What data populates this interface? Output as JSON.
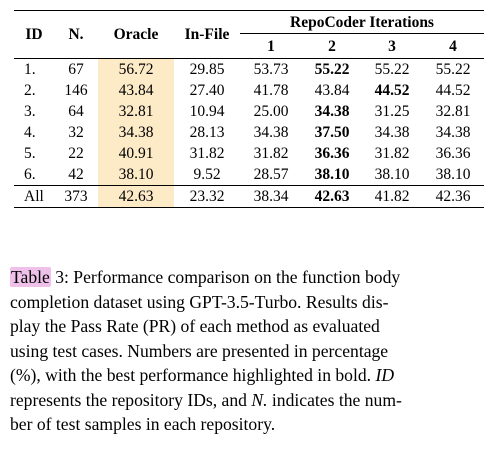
{
  "table": {
    "headers": {
      "id": "ID",
      "n": "N.",
      "oracle": "Oracle",
      "infile": "In-File",
      "group": "RepoCoder Iterations",
      "iterations": [
        "1",
        "2",
        "3",
        "4"
      ]
    },
    "rows": [
      {
        "id": "1.",
        "n": "67",
        "oracle": "56.72",
        "infile": "29.85",
        "it": [
          "53.73",
          "55.22",
          "55.22",
          "55.22"
        ],
        "bold": [
          false,
          true,
          false,
          false
        ]
      },
      {
        "id": "2.",
        "n": "146",
        "oracle": "43.84",
        "infile": "27.40",
        "it": [
          "41.78",
          "43.84",
          "44.52",
          "44.52"
        ],
        "bold": [
          false,
          false,
          true,
          false
        ]
      },
      {
        "id": "3.",
        "n": "64",
        "oracle": "32.81",
        "infile": "10.94",
        "it": [
          "25.00",
          "34.38",
          "31.25",
          "32.81"
        ],
        "bold": [
          false,
          true,
          false,
          false
        ]
      },
      {
        "id": "4.",
        "n": "32",
        "oracle": "34.38",
        "infile": "28.13",
        "it": [
          "34.38",
          "37.50",
          "34.38",
          "34.38"
        ],
        "bold": [
          false,
          true,
          false,
          false
        ]
      },
      {
        "id": "5.",
        "n": "22",
        "oracle": "40.91",
        "infile": "31.82",
        "it": [
          "31.82",
          "36.36",
          "31.82",
          "36.36"
        ],
        "bold": [
          false,
          true,
          false,
          false
        ]
      },
      {
        "id": "6.",
        "n": "42",
        "oracle": "38.10",
        "infile": "9.52",
        "it": [
          "28.57",
          "38.10",
          "38.10",
          "38.10"
        ],
        "bold": [
          false,
          true,
          false,
          false
        ]
      }
    ],
    "all_row": {
      "id": "All",
      "n": "373",
      "oracle": "42.63",
      "infile": "23.32",
      "it": [
        "38.34",
        "42.63",
        "41.82",
        "42.36"
      ],
      "bold": [
        false,
        true,
        false,
        false
      ]
    }
  },
  "caption": {
    "table_word": "Table",
    "number_part": " 3: Performance comparison on the function body",
    "line2": "completion dataset using GPT-3.5-Turbo. Results dis-",
    "line3": "play the Pass Rate (PR) of each method as evaluated",
    "line4": "using test cases. Numbers are presented in percentage",
    "line5": "(%), with the best performance highlighted in bold.",
    "line5_em": "ID",
    "line6_pre": "represents the repository IDs, and",
    "line6_em": "N.",
    "line6_post": "indicates the num-",
    "line7": "ber of test samples in each repository."
  }
}
